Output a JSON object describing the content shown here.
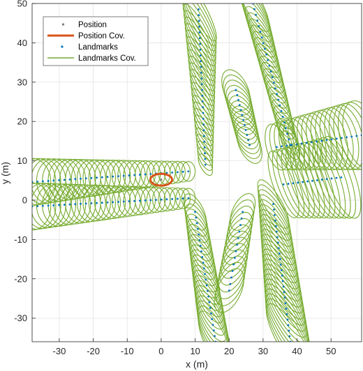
{
  "chart_data": {
    "type": "scatter",
    "xlabel": "x (m)",
    "ylabel": "y (m)",
    "xlim": [
      -38,
      59
    ],
    "ylim": [
      -36,
      50
    ],
    "xticks": [
      -30,
      -20,
      -10,
      0,
      10,
      20,
      30,
      40,
      50
    ],
    "yticks": [
      -30,
      -20,
      -10,
      0,
      10,
      20,
      30,
      40,
      50
    ],
    "grid": true,
    "legend_position": "top-left",
    "legend": [
      {
        "label": "Position",
        "marker": "square",
        "color": "#808080"
      },
      {
        "label": "Position Cov.",
        "line": true,
        "color": "#d95319"
      },
      {
        "label": "Landmarks",
        "marker": "dot",
        "color": "#0072bd"
      },
      {
        "label": "Landmarks Cov.",
        "line": true,
        "color": "#77ac30"
      }
    ],
    "position": {
      "x": 0,
      "y": 5.2
    },
    "position_cov": {
      "x": 0,
      "y": 5.2,
      "rx": 3.2,
      "ry": 1.5,
      "angle": 0
    },
    "colors": {
      "position": "#808080",
      "position_cov": "#d95319",
      "landmarks": "#0072bd",
      "landmarks_cov": "#77ac30"
    },
    "landmark_groups": [
      {
        "from": [
          -38,
          4.6
        ],
        "to": [
          8,
          7.3
        ],
        "count": 30,
        "rx_start": 5.5,
        "rx_end": 2.0,
        "ry_start": 6.0,
        "ry_end": 2.5,
        "angle": 0
      },
      {
        "from": [
          -38,
          -1.6
        ],
        "to": [
          8,
          0.5
        ],
        "count": 30,
        "rx_start": 5.5,
        "rx_end": 2.0,
        "ry_start": 6.0,
        "ry_end": 2.5,
        "angle": 0
      },
      {
        "from": [
          11,
          48.5
        ],
        "to": [
          13,
          9.0
        ],
        "count": 28,
        "rx_start": 2.2,
        "rx_end": 1.5,
        "ry_start": 9.0,
        "ry_end": 3.0,
        "angle": -28
      },
      {
        "from": [
          27,
          50
        ],
        "to": [
          38,
          14.0
        ],
        "count": 26,
        "rx_start": 2.5,
        "rx_end": 2.0,
        "ry_start": 8.0,
        "ry_end": 4.0,
        "angle": -28
      },
      {
        "from": [
          22,
          28
        ],
        "to": [
          26,
          14.0
        ],
        "count": 12,
        "rx_start": 3.5,
        "rx_end": 3.0,
        "ry_start": 5.5,
        "ry_end": 5.0,
        "angle": -25
      },
      {
        "from": [
          34,
          13.5
        ],
        "to": [
          59,
          16.5
        ],
        "count": 18,
        "rx_start": 3.0,
        "rx_end": 5.0,
        "ry_start": 6.0,
        "ry_end": 9.0,
        "angle": -15
      },
      {
        "from": [
          36,
          4.0
        ],
        "to": [
          53,
          5.8
        ],
        "count": 13,
        "rx_start": 3.0,
        "rx_end": 4.0,
        "ry_start": 9.0,
        "ry_end": 11.0,
        "angle": -20
      },
      {
        "from": [
          10,
          -3.0
        ],
        "to": [
          16,
          -36
        ],
        "count": 24,
        "rx_start": 2.5,
        "rx_end": 3.2,
        "ry_start": 5.0,
        "ry_end": 8.5,
        "angle": -25
      },
      {
        "from": [
          24,
          -3.0
        ],
        "to": [
          20,
          -23
        ],
        "count": 13,
        "rx_start": 3.0,
        "rx_end": 3.5,
        "ry_start": 5.0,
        "ry_end": 6.0,
        "angle": 25
      },
      {
        "from": [
          33,
          -1.0
        ],
        "to": [
          38,
          -36
        ],
        "count": 26,
        "rx_start": 2.5,
        "rx_end": 3.5,
        "ry_start": 7.0,
        "ry_end": 11.0,
        "angle": -30
      }
    ]
  }
}
